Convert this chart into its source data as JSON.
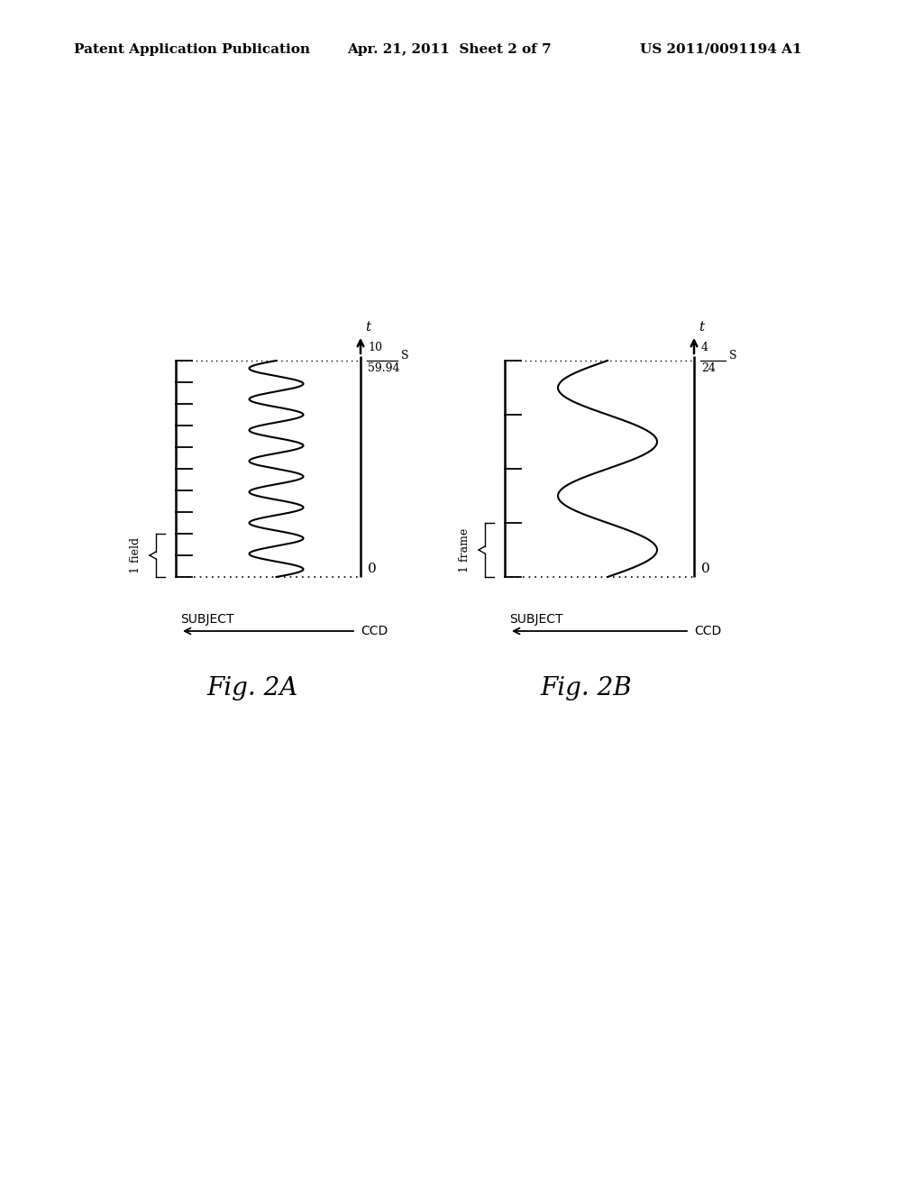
{
  "header_left": "Patent Application Publication",
  "header_mid": "Apr. 21, 2011  Sheet 2 of 7",
  "header_right": "US 2011/0091194 A1",
  "fig2a_label": "Fig. 2A",
  "fig2b_label": "Fig. 2B",
  "time_label": "t",
  "s_label": "S",
  "fig2a_fraction_num": "10",
  "fig2a_fraction_den": "59.94",
  "fig2b_fraction_num": "4",
  "fig2b_fraction_den": "24",
  "field_label": "1 field",
  "frame_label": "1 frame",
  "subject_label": "SUBJECT",
  "ccd_label": "CCD",
  "zero_label": "0",
  "background_color": "#ffffff",
  "fig2a_n_ticks": 10,
  "fig2a_freq": 7.0,
  "fig2a_amp": 30,
  "fig2b_n_ticks": 4,
  "fig2b_freq": 2.0,
  "fig2b_amp": 55
}
